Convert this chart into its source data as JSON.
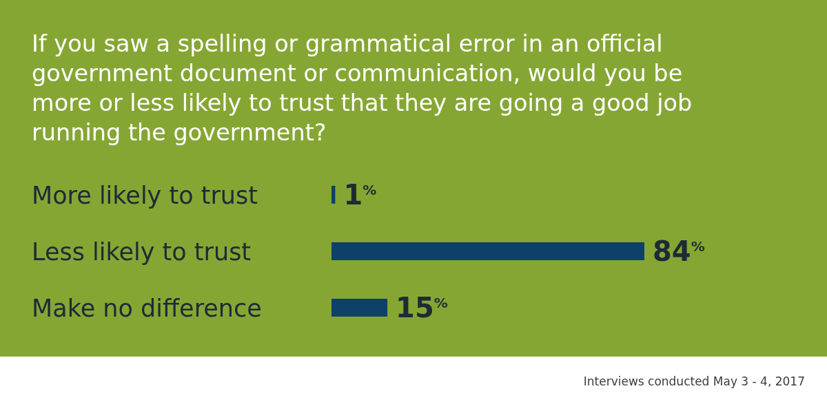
{
  "chart_data": {
    "type": "bar",
    "orientation": "horizontal",
    "title": "If you saw a spelling or grammatical error in an official government document or communication, would you be more or less likely to trust that they are going a good job running the government?",
    "categories": [
      "More likely to trust",
      "Less likely to trust",
      "Make no difference"
    ],
    "values": [
      1,
      84,
      15
    ],
    "color": "#0d4169",
    "value_labels": [
      "1$^{%}$",
      "84$^{%}$",
      "15$^{%}$"
    ],
    "tick_labels": "y",
    "grid": false,
    "legend": false,
    "annotations": [
      "Interviews conducted May 3 - 4, 2017"
    ]
  }
}
